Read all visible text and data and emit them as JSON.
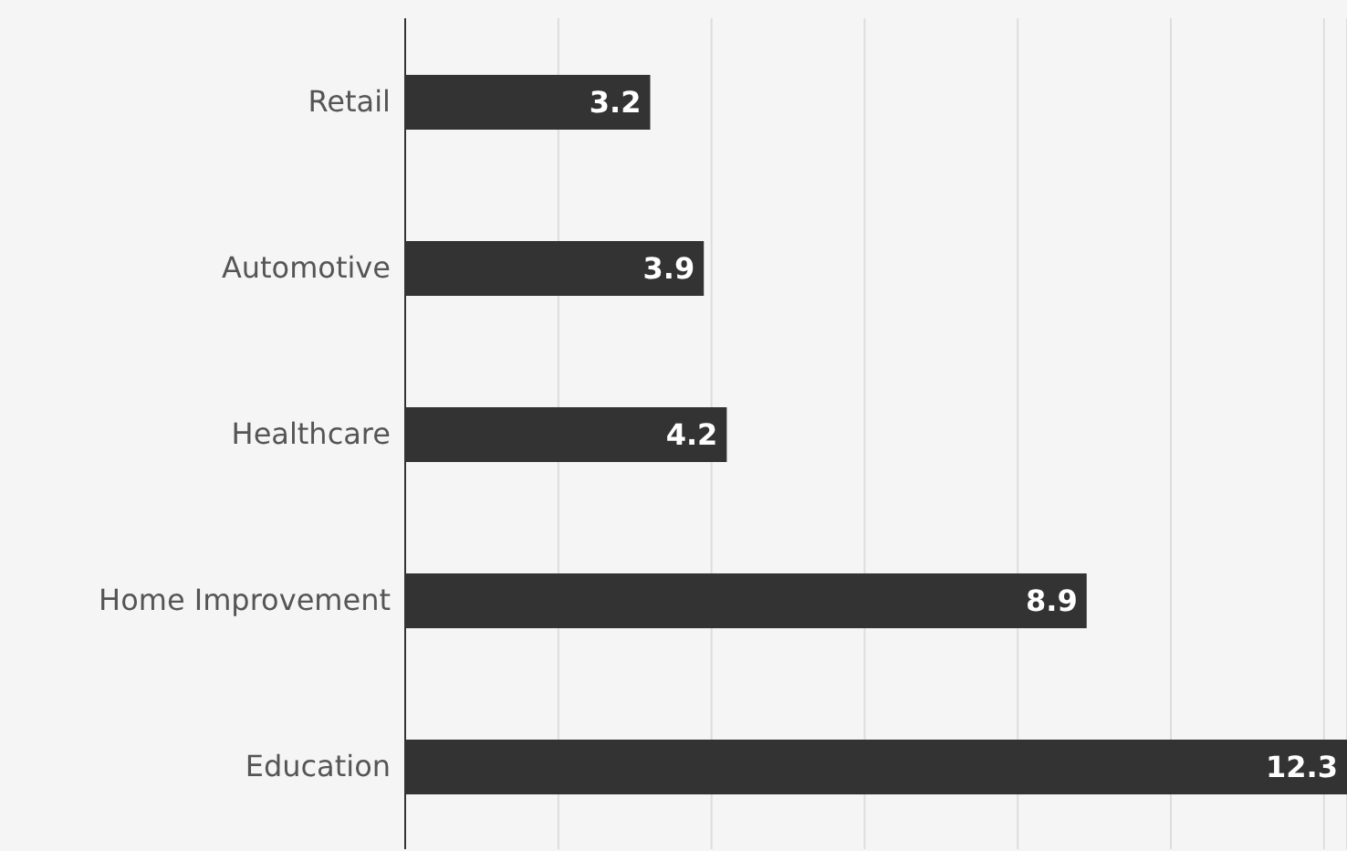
{
  "chart_data": {
    "type": "bar",
    "orientation": "horizontal",
    "categories": [
      "Retail",
      "Automotive",
      "Healthcare",
      "Home Improvement",
      "Education"
    ],
    "values": [
      3.2,
      3.9,
      4.2,
      8.9,
      12.3
    ],
    "color": "#333333",
    "xlim": [
      0,
      12.3
    ],
    "xticks": [
      {
        "value": 0,
        "label": null
      },
      {
        "value": 2,
        "label": null
      },
      {
        "value": 4,
        "label": null
      },
      {
        "value": 6,
        "label": null
      },
      {
        "value": 8,
        "label": null
      },
      {
        "value": 10,
        "label": null
      },
      {
        "value": 12,
        "label": null
      }
    ],
    "tick_labels": "y",
    "grid": "x",
    "data_labels": true
  }
}
